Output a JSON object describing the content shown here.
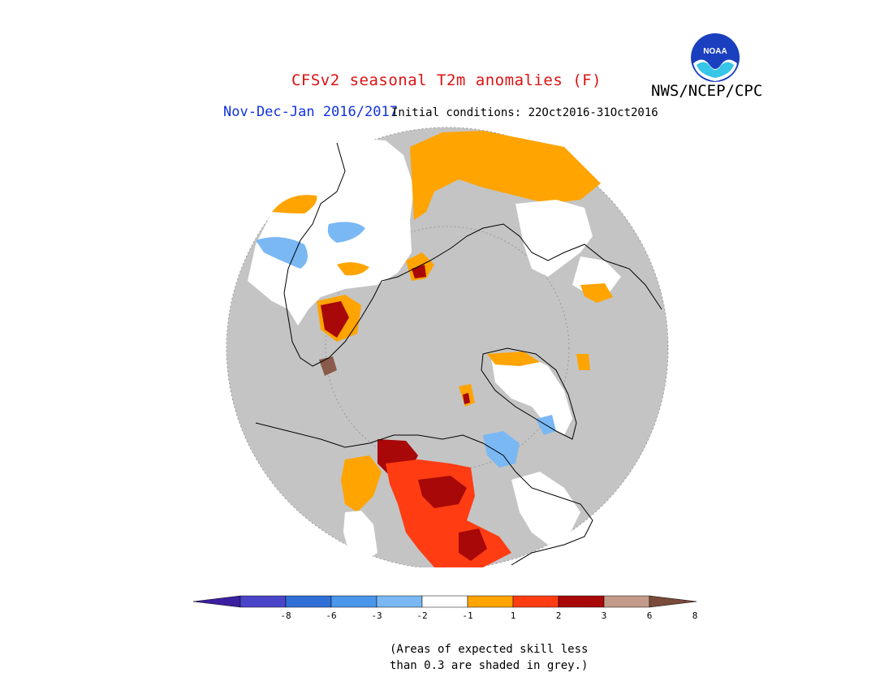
{
  "title": "CFSv2 seasonal T2m anomalies (F)",
  "organization": "NWS/NCEP/CPC",
  "logo_text": "NOAA",
  "period": "Nov-Dec-Jan 2016/2017",
  "initial_conditions": "Initial conditions: 22Oct2016-31Oct2016",
  "legend": {
    "tick_labels": [
      "-8",
      "-6",
      "-3",
      "-2",
      "-1",
      "1",
      "2",
      "3",
      "6",
      "8"
    ],
    "colors": [
      "#3a1fa0",
      "#4a45c8",
      "#2f6fd6",
      "#4a96ea",
      "#7ab8f4",
      "#ffffff",
      "#ffa400",
      "#ff3c12",
      "#a80808",
      "#c49a8a",
      "#7a4a3a"
    ]
  },
  "note": [
    "(Areas of expected skill less",
    "than 0.3 are shaded in grey.)"
  ],
  "map": {
    "projection": "north-polar-stereographic",
    "mask_color": "#c4c4c4",
    "colors": {
      "white": "#ffffff",
      "orange": "#ffa400",
      "red": "#ff3c12",
      "darkred": "#a80808",
      "blue": "#7ab8f4",
      "brown": "#8a5a4a"
    }
  }
}
